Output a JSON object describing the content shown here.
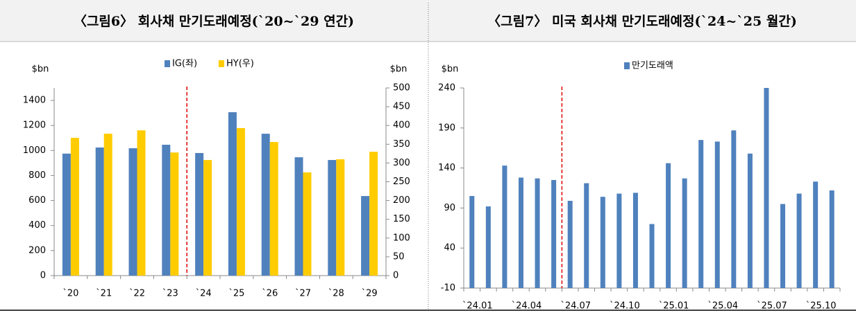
{
  "chart_data": [
    {
      "type": "bar",
      "title": "〈그림6〉 회사채 만기도래예정(`20~`29 연간)",
      "y_unit": "$bn",
      "y2_unit": "$bn",
      "categories": [
        "`20",
        "`21",
        "`22",
        "`23",
        "`24",
        "`25",
        "`26",
        "`27",
        "`28",
        "`29"
      ],
      "series": [
        {
          "name": "IG(좌)",
          "color": "#4f81bd",
          "values": [
            975,
            1024,
            1018,
            1046,
            980,
            1306,
            1134,
            946,
            924,
            636
          ]
        },
        {
          "name": "HY(우)",
          "color": "#ffcc00",
          "axis": "y2",
          "values": [
            367,
            378,
            387,
            328,
            308,
            393,
            356,
            275,
            310,
            330
          ]
        }
      ],
      "ylim": [
        0,
        1500
      ],
      "yticks": [
        0,
        200,
        400,
        600,
        800,
        1000,
        1200,
        1400
      ],
      "y2lim": [
        0,
        500
      ],
      "y2ticks": [
        0,
        50,
        100,
        150,
        200,
        250,
        300,
        350,
        400,
        450,
        500
      ],
      "grid": false,
      "legend": "top"
    },
    {
      "type": "bar",
      "title": "〈그림7〉 미국 회사채 만기도래예정(`24~`25 월간)",
      "y_unit": "$bn",
      "categories": [
        "`24.01",
        null,
        null,
        "`24.04",
        null,
        null,
        "`24.07",
        null,
        null,
        "`24.10",
        null,
        null,
        "`25.01",
        null,
        null,
        "`25.04",
        null,
        null,
        "`25.07",
        null,
        null,
        "`25.10",
        null
      ],
      "series": [
        {
          "name": "만기도래액",
          "color": "#4f81bd",
          "values": [
            105,
            92,
            143,
            128,
            127,
            125,
            99,
            121,
            104,
            108,
            109,
            70,
            146,
            127,
            175,
            173,
            187,
            158,
            240,
            95,
            108,
            123,
            112
          ]
        }
      ],
      "ylim": [
        -10,
        240
      ],
      "yticks": [
        -10,
        40,
        90,
        140,
        190,
        240
      ],
      "grid": false,
      "legend": "top"
    }
  ]
}
